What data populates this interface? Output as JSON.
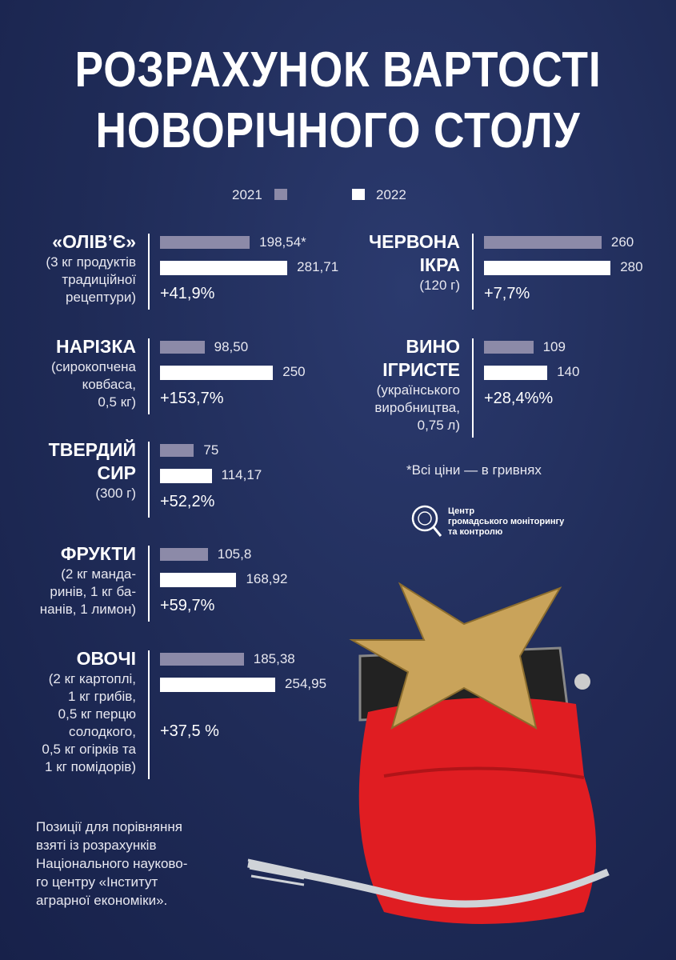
{
  "chart_data": {
    "type": "bar",
    "title": [
      "РОЗРАХУНОК ВАРТОСТІ",
      "НОВОРІЧНОГО СТОЛУ"
    ],
    "categories": [
      "«ОЛІВ’Є»",
      "НАРІЗКА",
      "ТВЕРДИЙ\nСИР",
      "ФРУКТИ",
      "ОВОЧІ",
      "ЧЕРВОНА\nІКРА",
      "ВИНО\nІГРИСТЕ"
    ],
    "category_notes": [
      "(3 кг продуктів\nтрадиційної\nрецептури)",
      "(сирокопчена\nковбаса,\n0,5 кг)",
      "(300 г)",
      "(2 кг манда-\nринів, 1 кг ба-\nнанів, 1 лимон)",
      "(2 кг картоплі,\n1 кг грибів,\n0,5 кг перцю\nсолодкого,\n0,5 кг огірків та\n1 кг помідорів)",
      "(120 г)",
      "(українського\nвиробництва,\n0,75 л)"
    ],
    "series": [
      {
        "name": "2021",
        "color": "#8c8aa8",
        "values": [
          198.54,
          98.5,
          75,
          105.8,
          185.38,
          260,
          109
        ],
        "value_labels": [
          "198,54*",
          "98,50",
          "75",
          "105,8",
          "185,38",
          "260",
          "109"
        ]
      },
      {
        "name": "2022",
        "color": "#ffffff",
        "values": [
          281.71,
          250,
          114.17,
          168.92,
          254.95,
          280,
          140
        ],
        "value_labels": [
          "281,71",
          "250",
          "114,17",
          "168,92",
          "254,95",
          "280",
          "140"
        ]
      }
    ],
    "changes": [
      "+41,9%",
      "+153,7%",
      "+52,2%",
      "+59,7%",
      "+37,5 %",
      "+7,7%",
      "+28,4%%"
    ],
    "footnote": "*Всі ціни — в гривнях",
    "logo_text": "Центр\nгромадського моніторингу\nта контролю",
    "source": "Позиції для порівняння\nвзяті із розрахунків\nНаціонального науково-\nго центру «Інститут\nаграрної економіки»."
  }
}
